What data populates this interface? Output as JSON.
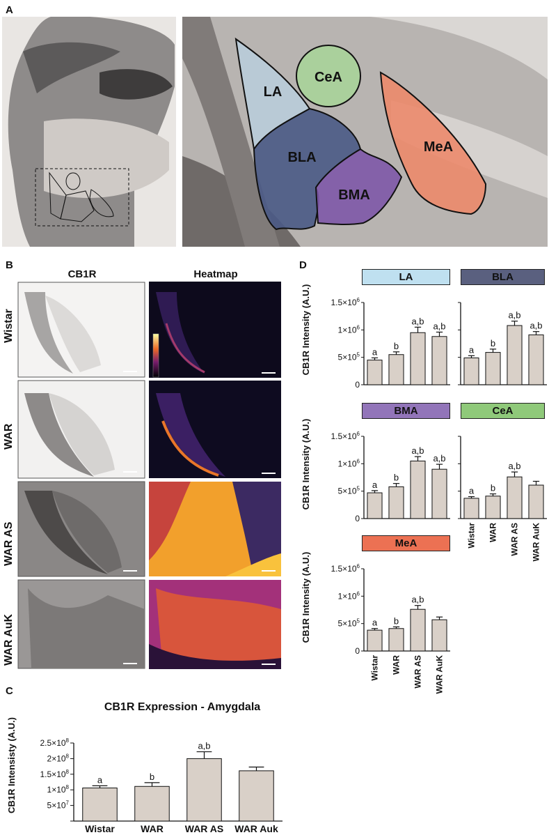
{
  "panel_letters": {
    "a": "A",
    "b": "B",
    "c": "C",
    "d": "D"
  },
  "panel_a": {
    "regions": [
      {
        "name": "LA",
        "color": "#b8cedd"
      },
      {
        "name": "CeA",
        "color": "#a9d39a"
      },
      {
        "name": "BLA",
        "color": "#4a5a86"
      },
      {
        "name": "BMA",
        "color": "#7e58a8"
      },
      {
        "name": "MeA",
        "color": "#ec8a6c"
      }
    ]
  },
  "panel_b": {
    "col_headers": [
      "CB1R",
      "Heatmap"
    ],
    "rows": [
      "Wistar",
      "WAR",
      "WAR AS",
      "WAR AuK"
    ]
  },
  "panel_c": {
    "title": "CB1R Expression - Amygdala"
  },
  "panel_d": {
    "ylabel": "CB1R Intensity (A.U.)",
    "region_colors": {
      "LA": "#bfe0f0",
      "BLA": "#5a607f",
      "BMA": "#9275b9",
      "CeA": "#8fc97a",
      "MeA": "#ec7153"
    }
  },
  "chart_data": [
    {
      "type": "bar",
      "title": "CB1R Expression - Amygdala",
      "ylabel": "CB1R Intensisty (A.U.)",
      "categories": [
        "Wistar",
        "WAR",
        "WAR AS",
        "WAR Auk"
      ],
      "values": [
        106000000,
        111000000,
        200000000,
        161000000
      ],
      "errors": [
        7000000,
        12000000,
        22000000,
        12000000
      ],
      "significance": [
        "a",
        "b",
        "a,b",
        ""
      ],
      "ylim": [
        0,
        250000000
      ],
      "yticks": [
        "5×10⁷",
        "1×10⁸",
        "1.5×10⁸",
        "2×10⁸",
        "2.5×10⁸"
      ],
      "ytick_values": [
        50000000,
        100000000,
        150000000,
        200000000,
        250000000
      ]
    },
    {
      "type": "bar",
      "title": "LA",
      "categories": [
        "Wistar",
        "WAR",
        "WAR AS",
        "WAR AuK"
      ],
      "values": [
        450000,
        550000,
        950000,
        880000
      ],
      "errors": [
        40000,
        50000,
        100000,
        80000
      ],
      "significance": [
        "a",
        "b",
        "a,b",
        "a,b"
      ],
      "ylim": [
        0,
        1500000
      ]
    },
    {
      "type": "bar",
      "title": "BLA",
      "categories": [
        "Wistar",
        "WAR",
        "WAR AS",
        "WAR AuK"
      ],
      "values": [
        490000,
        590000,
        1080000,
        910000
      ],
      "errors": [
        40000,
        60000,
        80000,
        60000
      ],
      "significance": [
        "a",
        "b",
        "a,b",
        "a,b"
      ],
      "ylim": [
        0,
        1500000
      ]
    },
    {
      "type": "bar",
      "title": "BMA",
      "categories": [
        "Wistar",
        "WAR",
        "WAR AS",
        "WAR AuK"
      ],
      "values": [
        470000,
        580000,
        1050000,
        900000
      ],
      "errors": [
        40000,
        60000,
        80000,
        90000
      ],
      "significance": [
        "a",
        "b",
        "a,b",
        "a,b"
      ],
      "ylim": [
        0,
        1500000
      ]
    },
    {
      "type": "bar",
      "title": "CeA",
      "categories": [
        "Wistar",
        "WAR",
        "WAR AS",
        "WAR AuK"
      ],
      "values": [
        370000,
        410000,
        760000,
        610000
      ],
      "errors": [
        30000,
        40000,
        90000,
        70000
      ],
      "significance": [
        "a",
        "b",
        "a,b",
        ""
      ],
      "ylim": [
        0,
        1500000
      ]
    },
    {
      "type": "bar",
      "title": "MeA",
      "categories": [
        "Wistar",
        "WAR",
        "WAR AS",
        "WAR AuK"
      ],
      "values": [
        380000,
        410000,
        760000,
        570000
      ],
      "errors": [
        30000,
        30000,
        70000,
        50000
      ],
      "significance": [
        "a",
        "b",
        "a,b",
        ""
      ],
      "ylim": [
        0,
        1500000
      ]
    }
  ]
}
